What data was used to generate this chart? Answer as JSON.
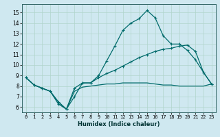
{
  "xlabel": "Humidex (Indice chaleur)",
  "background_color": "#cfe8f0",
  "grid_color": "#b0d4cc",
  "line_color": "#006b6b",
  "xlim": [
    -0.5,
    23.5
  ],
  "ylim": [
    5.5,
    15.8
  ],
  "xticks": [
    0,
    1,
    2,
    3,
    4,
    5,
    6,
    7,
    8,
    9,
    10,
    11,
    12,
    13,
    14,
    15,
    16,
    17,
    18,
    19,
    20,
    21,
    22,
    23
  ],
  "yticks": [
    6,
    7,
    8,
    9,
    10,
    11,
    12,
    13,
    14,
    15
  ],
  "line1_x": [
    0,
    1,
    2,
    3,
    4,
    5,
    6,
    7,
    8,
    9,
    10,
    11,
    12,
    13,
    14,
    15,
    16,
    17,
    18,
    19,
    20,
    21,
    22,
    23
  ],
  "line1_y": [
    8.8,
    8.1,
    7.8,
    7.5,
    6.3,
    5.8,
    7.0,
    8.3,
    8.3,
    9.0,
    10.4,
    11.8,
    13.3,
    14.0,
    14.4,
    15.2,
    14.5,
    12.8,
    12.0,
    12.0,
    11.4,
    10.5,
    9.3,
    8.2
  ],
  "line2_x": [
    0,
    1,
    2,
    3,
    4,
    5,
    6,
    7,
    8,
    9,
    10,
    11,
    12,
    13,
    14,
    15,
    16,
    17,
    18,
    19,
    20,
    21,
    22,
    23
  ],
  "line2_y": [
    8.8,
    8.1,
    7.8,
    7.5,
    6.5,
    5.8,
    7.8,
    8.3,
    8.3,
    8.8,
    9.2,
    9.5,
    9.9,
    10.3,
    10.7,
    11.0,
    11.3,
    11.5,
    11.6,
    11.8,
    11.9,
    11.3,
    9.3,
    8.2
  ],
  "line3_x": [
    0,
    1,
    2,
    3,
    4,
    5,
    6,
    7,
    8,
    9,
    10,
    11,
    12,
    13,
    14,
    15,
    16,
    17,
    18,
    19,
    20,
    21,
    22,
    23
  ],
  "line3_y": [
    8.8,
    8.1,
    7.8,
    7.5,
    6.5,
    5.8,
    7.5,
    7.9,
    8.0,
    8.1,
    8.2,
    8.2,
    8.3,
    8.3,
    8.3,
    8.3,
    8.2,
    8.1,
    8.1,
    8.0,
    8.0,
    8.0,
    8.0,
    8.2
  ]
}
